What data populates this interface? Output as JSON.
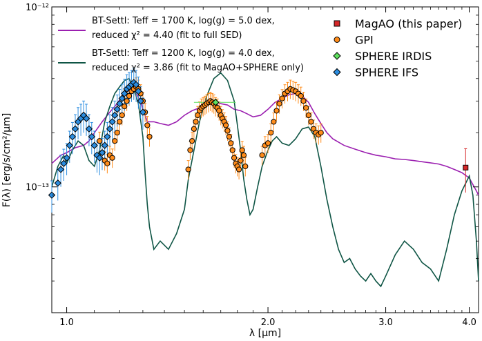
{
  "chart_data": {
    "type": "line",
    "title": "",
    "xlabel": "λ [μm]",
    "ylabel": "F(λ) [erg/s/cm²/μm]",
    "x_scale": "log",
    "y_scale": "log",
    "xlim": [
      0.95,
      4.13
    ],
    "ylim": [
      2e-14,
      1e-12
    ],
    "x_ticks": [
      1.0,
      2.0,
      3.0,
      4.0
    ],
    "x_tick_labels": [
      "1.0",
      "2.0",
      "3.0",
      "4.0"
    ],
    "y_ticks": [
      1e-13,
      1e-12
    ],
    "y_tick_labels": [
      "10⁻¹³",
      "10⁻¹²"
    ],
    "legend_position": "top-right",
    "model_legend_position": "top-left",
    "series": [
      {
        "name": "BT-Settl: T_eff = 1700 K, log(g) = 5.0 dex, reduced χ² = 4.40 (fit to full SED)",
        "legend_lines": [
          "BT-Settl: Teff = 1700 K, log(g) = 5.0 dex,",
          "reduced χ² = 4.40 (fit to full SED)"
        ],
        "kind": "model",
        "color": "#9b1fb0",
        "x": [
          0.95,
          0.98,
          1.0,
          1.03,
          1.06,
          1.08,
          1.1,
          1.13,
          1.16,
          1.19,
          1.21,
          1.23,
          1.25,
          1.27,
          1.29,
          1.3,
          1.32,
          1.35,
          1.38,
          1.42,
          1.46,
          1.5,
          1.54,
          1.58,
          1.62,
          1.66,
          1.7,
          1.74,
          1.78,
          1.82,
          1.86,
          1.9,
          1.95,
          2.0,
          2.05,
          2.1,
          2.15,
          2.2,
          2.25,
          2.3,
          2.35,
          2.4,
          2.45,
          2.5,
          2.6,
          2.7,
          2.8,
          2.9,
          3.0,
          3.1,
          3.2,
          3.3,
          3.4,
          3.5,
          3.6,
          3.7,
          3.8,
          3.9,
          4.0,
          4.1,
          4.13
        ],
        "y": [
          1.35e-13,
          1.5e-13,
          1.55e-13,
          1.65e-13,
          1.7e-13,
          1.8e-13,
          2e-13,
          2.3e-13,
          2.6e-13,
          2.9e-13,
          3.2e-13,
          3.4e-13,
          3.45e-13,
          3.3e-13,
          3e-13,
          2.7e-13,
          2.3e-13,
          2.3e-13,
          2.25e-13,
          2.2e-13,
          2.3e-13,
          2.5e-13,
          2.65e-13,
          2.75e-13,
          2.85e-13,
          2.95e-13,
          2.9e-13,
          2.85e-13,
          2.7e-13,
          2.65e-13,
          2.55e-13,
          2.45e-13,
          2.5e-13,
          2.7e-13,
          2.95e-13,
          3.1e-13,
          3.25e-13,
          3.3e-13,
          3.2e-13,
          2.95e-13,
          2.55e-13,
          2.25e-13,
          2e-13,
          1.85e-13,
          1.7e-13,
          1.62e-13,
          1.55e-13,
          1.5e-13,
          1.47e-13,
          1.43e-13,
          1.42e-13,
          1.4e-13,
          1.38e-13,
          1.36e-13,
          1.34e-13,
          1.3e-13,
          1.25e-13,
          1.2e-13,
          1.12e-13,
          9.5e-14,
          9e-14
        ]
      },
      {
        "name": "BT-Settl: T_eff = 1200 K, log(g) = 4.0 dex, reduced χ² = 3.86 (fit to MagAO+SPHERE only)",
        "legend_lines": [
          "BT-Settl: Teff = 1200 K, log(g) = 4.0 dex,",
          "reduced χ² = 3.86 (fit to MagAO+SPHERE only)"
        ],
        "kind": "model",
        "color": "#0f5545",
        "x": [
          0.95,
          0.97,
          0.99,
          1.0,
          1.02,
          1.04,
          1.06,
          1.08,
          1.1,
          1.12,
          1.14,
          1.16,
          1.18,
          1.2,
          1.22,
          1.24,
          1.26,
          1.28,
          1.3,
          1.31,
          1.32,
          1.33,
          1.35,
          1.38,
          1.42,
          1.46,
          1.5,
          1.52,
          1.55,
          1.58,
          1.62,
          1.66,
          1.7,
          1.74,
          1.78,
          1.8,
          1.82,
          1.84,
          1.86,
          1.88,
          1.9,
          1.93,
          1.96,
          2.0,
          2.03,
          2.06,
          2.1,
          2.15,
          2.2,
          2.25,
          2.3,
          2.35,
          2.4,
          2.45,
          2.5,
          2.55,
          2.6,
          2.65,
          2.7,
          2.75,
          2.8,
          2.85,
          2.9,
          2.95,
          3.0,
          3.1,
          3.2,
          3.3,
          3.4,
          3.5,
          3.6,
          3.7,
          3.8,
          3.9,
          4.0,
          4.05,
          4.1,
          4.13
        ],
        "y": [
          1e-13,
          1.3e-13,
          1.5e-13,
          1.35e-13,
          1.6e-13,
          1.8e-13,
          1.7e-13,
          1.4e-13,
          1.3e-13,
          1.6e-13,
          2.3e-13,
          2.8e-13,
          3.3e-13,
          3.6e-13,
          3.9e-13,
          4e-13,
          3.5e-13,
          2.9e-13,
          1.9e-13,
          1.2e-13,
          8e-14,
          6e-14,
          4.5e-14,
          5e-14,
          4.5e-14,
          5.5e-14,
          7.5e-14,
          1.1e-13,
          1.6e-13,
          2.3e-13,
          3.2e-13,
          4e-13,
          4.3e-13,
          3.9e-13,
          3e-13,
          2.2e-13,
          1.6e-13,
          1.1e-13,
          8.5e-14,
          7e-14,
          7.5e-14,
          1e-13,
          1.3e-13,
          1.6e-13,
          1.8e-13,
          1.9e-13,
          1.75e-13,
          1.7e-13,
          1.85e-13,
          2.1e-13,
          2.15e-13,
          1.9e-13,
          1.3e-13,
          8.5e-14,
          6e-14,
          4.5e-14,
          3.8e-14,
          4e-14,
          3.5e-14,
          3.2e-14,
          3e-14,
          3.3e-14,
          3e-14,
          2.8e-14,
          3.2e-14,
          4.2e-14,
          5e-14,
          4.5e-14,
          3.8e-14,
          3.5e-14,
          3e-14,
          4.5e-14,
          7e-14,
          9.5e-14,
          1.15e-13,
          9e-14,
          5e-14,
          3e-14
        ]
      },
      {
        "name": "MagAO (this paper)",
        "kind": "points",
        "marker": "square",
        "color": "#d62728",
        "x": [
          3.95
        ],
        "y": [
          1.28e-13
        ],
        "err": [
          3.5e-14
        ]
      },
      {
        "name": "GPI",
        "kind": "points",
        "marker": "circle",
        "color": "#ff8c1a",
        "x": [
          1.12,
          1.13,
          1.14,
          1.15,
          1.16,
          1.17,
          1.18,
          1.19,
          1.2,
          1.21,
          1.22,
          1.23,
          1.24,
          1.25,
          1.26,
          1.27,
          1.28,
          1.29,
          1.3,
          1.31,
          1.32,
          1.33,
          1.52,
          1.53,
          1.54,
          1.55,
          1.56,
          1.57,
          1.58,
          1.59,
          1.6,
          1.61,
          1.62,
          1.63,
          1.64,
          1.65,
          1.66,
          1.67,
          1.68,
          1.69,
          1.7,
          1.71,
          1.72,
          1.73,
          1.74,
          1.75,
          1.76,
          1.77,
          1.78,
          1.79,
          1.8,
          1.81,
          1.82,
          1.83,
          1.84,
          1.85,
          1.96,
          1.98,
          2.0,
          2.02,
          2.04,
          2.06,
          2.08,
          2.1,
          2.12,
          2.14,
          2.16,
          2.18,
          2.2,
          2.22,
          2.24,
          2.26,
          2.28,
          2.3,
          2.32,
          2.34,
          2.36,
          2.38,
          2.4
        ],
        "y": [
          1.8e-13,
          1.55e-13,
          1.4e-13,
          1.35e-13,
          1.5e-13,
          1.45e-13,
          1.8e-13,
          2e-13,
          2.3e-13,
          2.5e-13,
          2.8e-13,
          3e-13,
          3.2e-13,
          3.4e-13,
          3.5e-13,
          3.6e-13,
          3.5e-13,
          3.3e-13,
          3e-13,
          2.6e-13,
          2.2e-13,
          1.9e-13,
          1.25e-13,
          1.6e-13,
          1.8e-13,
          2.1e-13,
          2.3e-13,
          2.5e-13,
          2.65e-13,
          2.75e-13,
          2.8e-13,
          2.85e-13,
          2.9e-13,
          2.95e-13,
          3e-13,
          2.95e-13,
          2.9e-13,
          2.8e-13,
          2.75e-13,
          2.65e-13,
          2.5e-13,
          2.4e-13,
          2.3e-13,
          2.2e-13,
          2.05e-13,
          1.9e-13,
          1.75e-13,
          1.6e-13,
          1.45e-13,
          1.35e-13,
          1.3e-13,
          1.25e-13,
          1.4e-13,
          1.6e-13,
          1.5e-13,
          1.3e-13,
          1.5e-13,
          1.7e-13,
          1.75e-13,
          2e-13,
          2.3e-13,
          2.65e-13,
          2.9e-13,
          3.1e-13,
          3.3e-13,
          3.4e-13,
          3.5e-13,
          3.45e-13,
          3.4e-13,
          3.3e-13,
          3.2e-13,
          3e-13,
          2.75e-13,
          2.5e-13,
          2.3e-13,
          2.1e-13,
          2e-13,
          1.95e-13,
          2e-13
        ],
        "err_frac": 0.12
      },
      {
        "name": "SPHERE IRDIS",
        "kind": "points",
        "marker": "diamond",
        "color": "#5ee05e",
        "x": [
          1.67
        ],
        "y": [
          2.95e-13
        ],
        "xerr": [
          0.12
        ],
        "err": [
          1e-14
        ]
      },
      {
        "name": "SPHERE IFS",
        "kind": "points",
        "marker": "diamond",
        "color": "#2b8de0",
        "x": [
          0.95,
          0.97,
          0.98,
          0.99,
          1.0,
          1.01,
          1.02,
          1.03,
          1.04,
          1.05,
          1.06,
          1.07,
          1.08,
          1.09,
          1.1,
          1.11,
          1.12,
          1.13,
          1.14,
          1.15,
          1.16,
          1.17,
          1.18,
          1.19,
          1.2,
          1.21,
          1.22,
          1.23,
          1.24,
          1.25,
          1.26,
          1.27,
          1.28,
          1.29,
          1.3
        ],
        "y": [
          9e-14,
          1.05e-13,
          1.25e-13,
          1.35e-13,
          1.45e-13,
          1.7e-13,
          1.9e-13,
          2.1e-13,
          2.3e-13,
          2.4e-13,
          2.5e-13,
          2.4e-13,
          2.1e-13,
          1.9e-13,
          1.7e-13,
          1.5e-13,
          1.45e-13,
          1.55e-13,
          1.7e-13,
          1.9e-13,
          2.1e-13,
          2.3e-13,
          2.5e-13,
          2.7e-13,
          2.9e-13,
          3.1e-13,
          3.3e-13,
          3.5e-13,
          3.6e-13,
          3.7e-13,
          3.8e-13,
          3.7e-13,
          3.4e-13,
          3e-13,
          2.6e-13
        ],
        "err_frac": 0.2
      }
    ]
  }
}
